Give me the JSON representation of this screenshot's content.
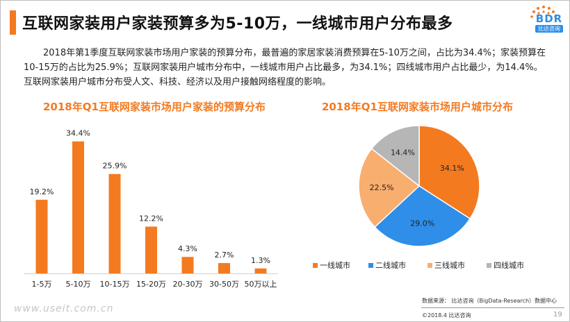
{
  "header": {
    "title": "互联网家装用户家装预算多为5-10万，一线城市用户分布最多",
    "logo_text": "BDR",
    "logo_subtext": "比达咨询"
  },
  "summary": "2018年第1季度互联网家装市场用户家装的预算分布，最普遍的家居家装消费预算在5-10万之间，占比为34.4%；家装预算在10-15万的占比为25.9%；互联网家装用户城市分布中，一线城市用户占比最多，为34.1%；四线城市用户占比最少，为14.4%。互联网家装用户城市分布受人文、科技、经济以及用户接触网络程度的影响。",
  "colors": {
    "accent": "#f47a20",
    "bar": "#f47a20",
    "tier1": "#f47a20",
    "tier2": "#2e8ee8",
    "tier3": "#f8ae6f",
    "tier4": "#b6b6b6"
  },
  "chart_data": [
    {
      "type": "bar",
      "title": "2018年Q1互联网家装市场用户家装的预算分布",
      "categories": [
        "1-5万",
        "5-10万",
        "10-15万",
        "15-20万",
        "20-30万",
        "30-50万",
        "50万以上"
      ],
      "values": [
        19.2,
        34.4,
        25.9,
        12.2,
        4.3,
        2.7,
        1.3
      ],
      "value_labels": [
        "19.2%",
        "34.4%",
        "25.9%",
        "12.2%",
        "4.3%",
        "2.7%",
        "1.3%"
      ],
      "ylim": [
        0,
        40
      ],
      "grid": false
    },
    {
      "type": "pie",
      "title": "2018年Q1互联网家装市场用户城市分布",
      "labels": [
        "一线城市",
        "二线城市",
        "三线城市",
        "四线城市"
      ],
      "values": [
        34.1,
        29.0,
        22.5,
        14.4
      ],
      "value_labels": [
        "34.1%",
        "29.0%",
        "22.5%",
        "14.4%"
      ],
      "legend": "bottom"
    }
  ],
  "footer": {
    "source": "数据来源： 比达咨询（BigData-Research）数据中心",
    "copyright": "©2018.4   比达咨询",
    "page_number": "19",
    "watermark": "www.useit.com.cn"
  }
}
